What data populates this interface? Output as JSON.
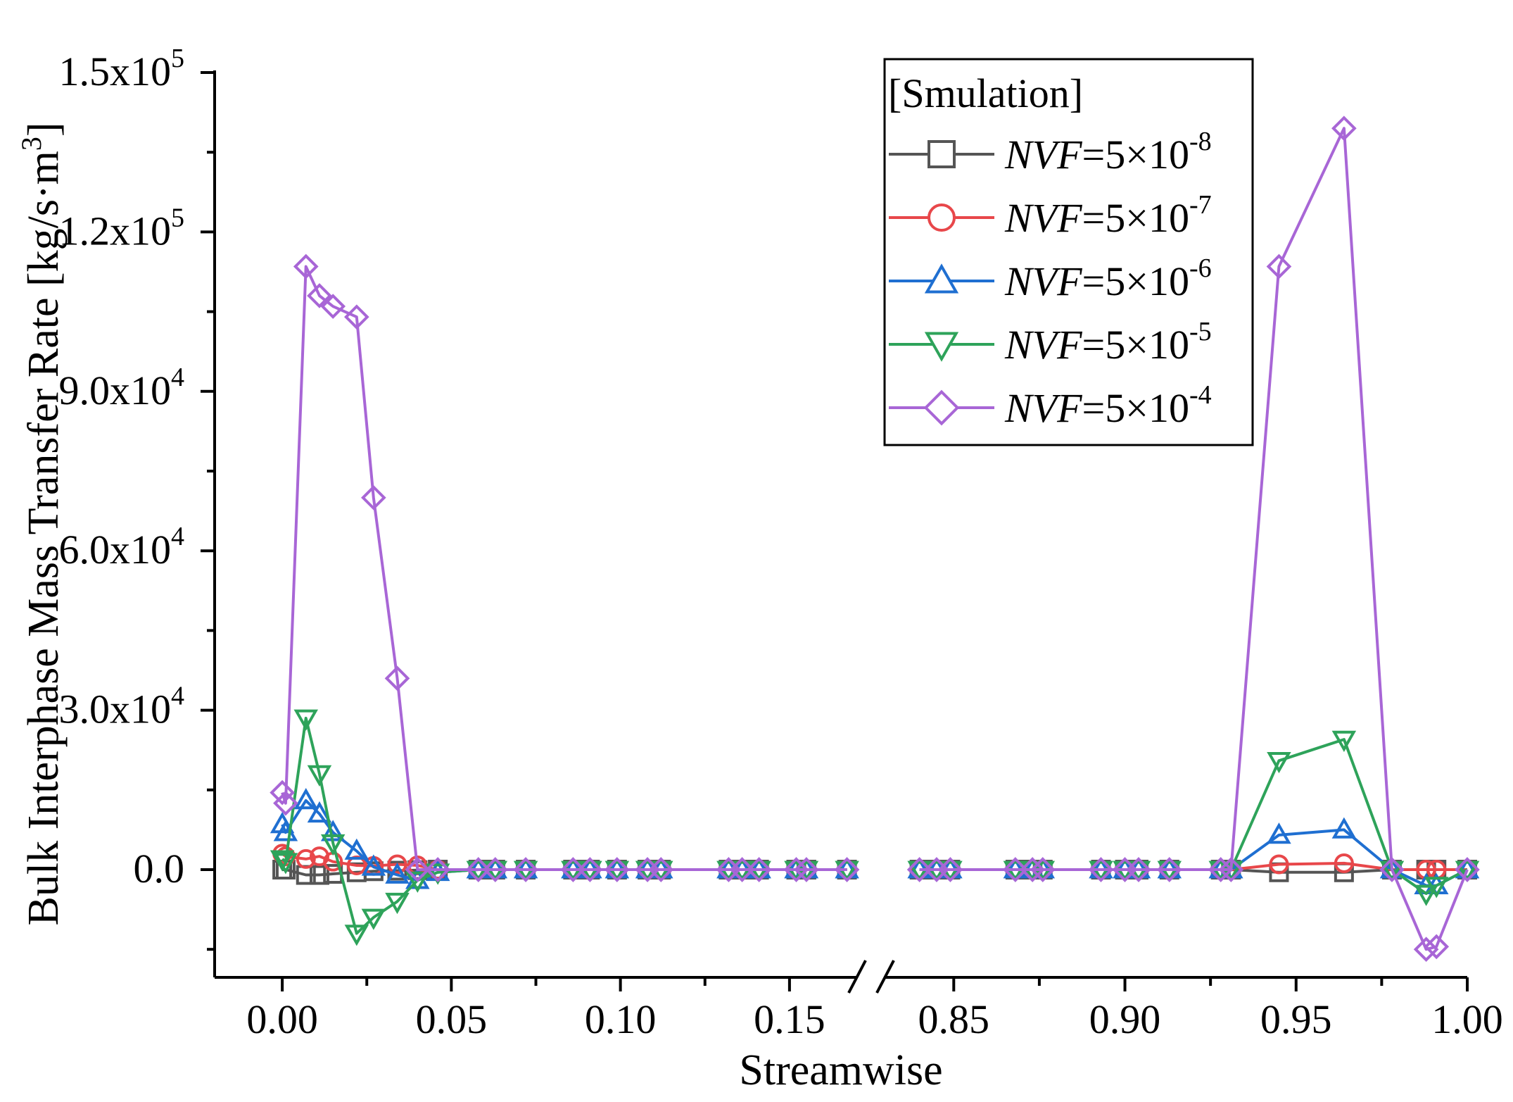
{
  "chart_data": {
    "type": "line",
    "xlabel": "Streamwise",
    "ylabel": "Bulk Interphase Mass Transfer Rate [kg/s·m³]",
    "ylabel_parts": {
      "main": "Bulk Interphase Mass Transfer Rate [kg/s·m",
      "sup": "3",
      "close": "]"
    },
    "ylim": [
      -15000,
      150000
    ],
    "y_ticks": [
      {
        "value": 0,
        "mantissa": "0.0",
        "exp": ""
      },
      {
        "value": 30000,
        "mantissa": "3.0x10",
        "exp": "4"
      },
      {
        "value": 60000,
        "mantissa": "6.0x10",
        "exp": "4"
      },
      {
        "value": 90000,
        "mantissa": "9.0x10",
        "exp": "4"
      },
      {
        "value": 120000,
        "mantissa": "1.2x10",
        "exp": "5"
      },
      {
        "value": 150000,
        "mantissa": "1.5x10",
        "exp": "5"
      }
    ],
    "x_axis_break": {
      "left_range": [
        -0.02,
        0.17
      ],
      "right_range": [
        0.83,
        1.0
      ]
    },
    "x_ticks": [
      {
        "value": 0.0,
        "label": "0.00"
      },
      {
        "value": 0.05,
        "label": "0.05"
      },
      {
        "value": 0.1,
        "label": "0.10"
      },
      {
        "value": 0.15,
        "label": "0.15"
      },
      {
        "value": 0.85,
        "label": "0.85"
      },
      {
        "value": 0.9,
        "label": "0.90"
      },
      {
        "value": 0.95,
        "label": "0.95"
      },
      {
        "value": 1.0,
        "label": "1.00"
      }
    ],
    "x": [
      0.0,
      0.001,
      0.007,
      0.011,
      0.015,
      0.022,
      0.027,
      0.034,
      0.04,
      0.046,
      0.058,
      0.063,
      0.072,
      0.086,
      0.091,
      0.099,
      0.108,
      0.112,
      0.132,
      0.136,
      0.141,
      0.152,
      0.155,
      0.167,
      0.84,
      0.845,
      0.849,
      0.868,
      0.873,
      0.876,
      0.893,
      0.9,
      0.904,
      0.913,
      0.928,
      0.931,
      0.945,
      0.964,
      0.978,
      0.988,
      0.991,
      1.0
    ],
    "legend": {
      "title": "[Smulation]",
      "position": "top-right"
    },
    "series": [
      {
        "name": "NVF=5×10-8",
        "var": "NVF",
        "base": "=5×10",
        "exp": "-8",
        "color": "#555555",
        "marker": "square",
        "values": [
          0,
          0,
          -1000,
          -1000,
          -800,
          -500,
          -300,
          -200,
          -100,
          0,
          0,
          0,
          0,
          0,
          0,
          0,
          0,
          0,
          0,
          0,
          0,
          0,
          0,
          0,
          0,
          0,
          0,
          0,
          0,
          0,
          0,
          0,
          0,
          0,
          0,
          0,
          -500,
          -500,
          0,
          0,
          0,
          0
        ]
      },
      {
        "name": "NVF=5×10-7",
        "var": "NVF",
        "base": "=5×10",
        "exp": "-7",
        "color": "#e8474a",
        "marker": "circle",
        "values": [
          3000,
          2500,
          2000,
          2500,
          1500,
          800,
          700,
          1000,
          800,
          0,
          0,
          0,
          0,
          0,
          0,
          0,
          0,
          0,
          0,
          0,
          0,
          0,
          0,
          0,
          0,
          0,
          0,
          0,
          0,
          0,
          0,
          0,
          0,
          0,
          0,
          0,
          1000,
          1200,
          0,
          0,
          0,
          0
        ]
      },
      {
        "name": "NVF=5×10-6",
        "var": "NVF",
        "base": "=5×10",
        "exp": "-6",
        "color": "#1f6fd1",
        "marker": "triangle-up",
        "values": [
          8500,
          7000,
          13000,
          10500,
          7000,
          3500,
          500,
          -1000,
          -2000,
          -500,
          0,
          0,
          0,
          0,
          0,
          0,
          0,
          0,
          0,
          0,
          0,
          0,
          0,
          0,
          0,
          0,
          0,
          0,
          0,
          0,
          0,
          0,
          0,
          0,
          0,
          0,
          6500,
          7500,
          0,
          -3000,
          -3000,
          0
        ]
      },
      {
        "name": "NVF=5×10-5",
        "var": "NVF",
        "base": "=5×10",
        "exp": "-5",
        "color": "#2ea35a",
        "marker": "triangle-down",
        "values": [
          2000,
          1500,
          28500,
          18000,
          5000,
          -12000,
          -9000,
          -6000,
          -2000,
          -500,
          0,
          0,
          0,
          0,
          0,
          0,
          0,
          0,
          0,
          0,
          0,
          0,
          0,
          0,
          0,
          0,
          0,
          0,
          0,
          0,
          0,
          0,
          0,
          0,
          0,
          0,
          20500,
          24500,
          0,
          -4500,
          -3000,
          0
        ]
      },
      {
        "name": "NVF=5×10-4",
        "var": "NVF",
        "base": "=5×10",
        "exp": "-4",
        "color": "#a866d6",
        "marker": "diamond",
        "values": [
          14500,
          12500,
          113500,
          108000,
          106000,
          104000,
          70000,
          36000,
          0,
          0,
          0,
          0,
          0,
          0,
          0,
          0,
          0,
          0,
          0,
          0,
          0,
          0,
          0,
          0,
          0,
          0,
          0,
          0,
          0,
          0,
          0,
          0,
          0,
          0,
          0,
          0,
          113500,
          139500,
          0,
          -15000,
          -14500,
          0
        ]
      }
    ]
  }
}
